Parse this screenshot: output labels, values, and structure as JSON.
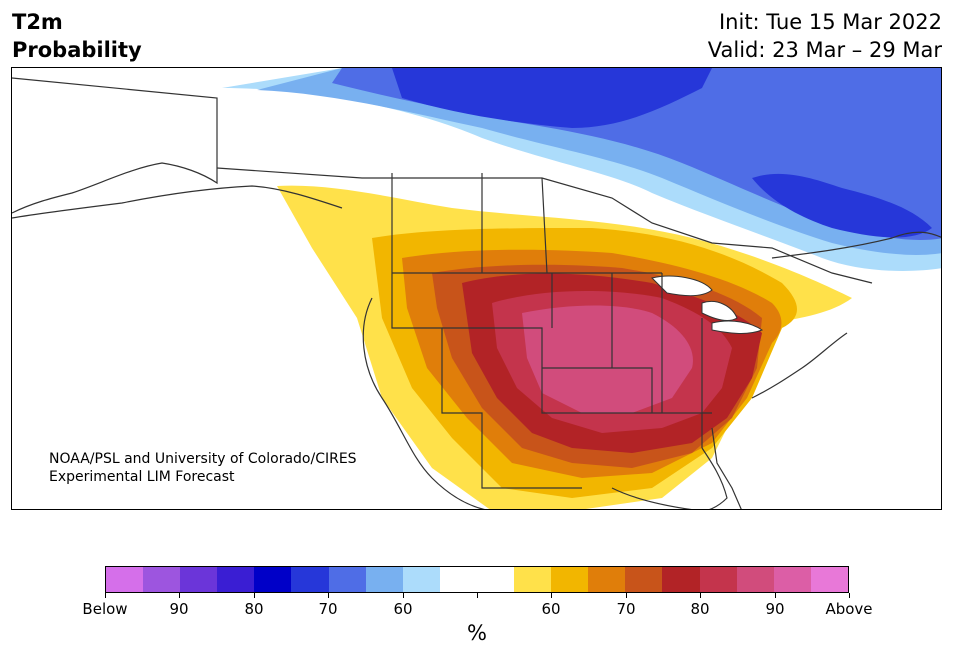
{
  "header": {
    "variable": "T2m",
    "product": "Probability",
    "init": "Init: Tue 15 Mar 2022",
    "valid": "Valid: 23 Mar – 29 Mar"
  },
  "credit": {
    "line1": "NOAA/PSL and University of Colorado/CIRES",
    "line2": "Experimental LIM Forecast"
  },
  "legend": {
    "unit": "%",
    "colors": [
      "#d56fea",
      "#9d55df",
      "#6b35d9",
      "#3a1ed3",
      "#0000c8",
      "#2637d9",
      "#4f6de6",
      "#78b0f0",
      "#acdcfb",
      "#ffffff",
      "#ffffff",
      "#ffe14a",
      "#f2b600",
      "#e07e0a",
      "#c8541a",
      "#b22326",
      "#c4344c",
      "#d14c7c",
      "#dc5ea6",
      "#e878d8"
    ],
    "tick_labels": [
      "Below",
      "90",
      "80",
      "70",
      "60",
      "",
      "60",
      "70",
      "80",
      "90",
      "Above"
    ]
  },
  "map": {
    "land_color": "#ffffff",
    "border_color": "#333333"
  }
}
